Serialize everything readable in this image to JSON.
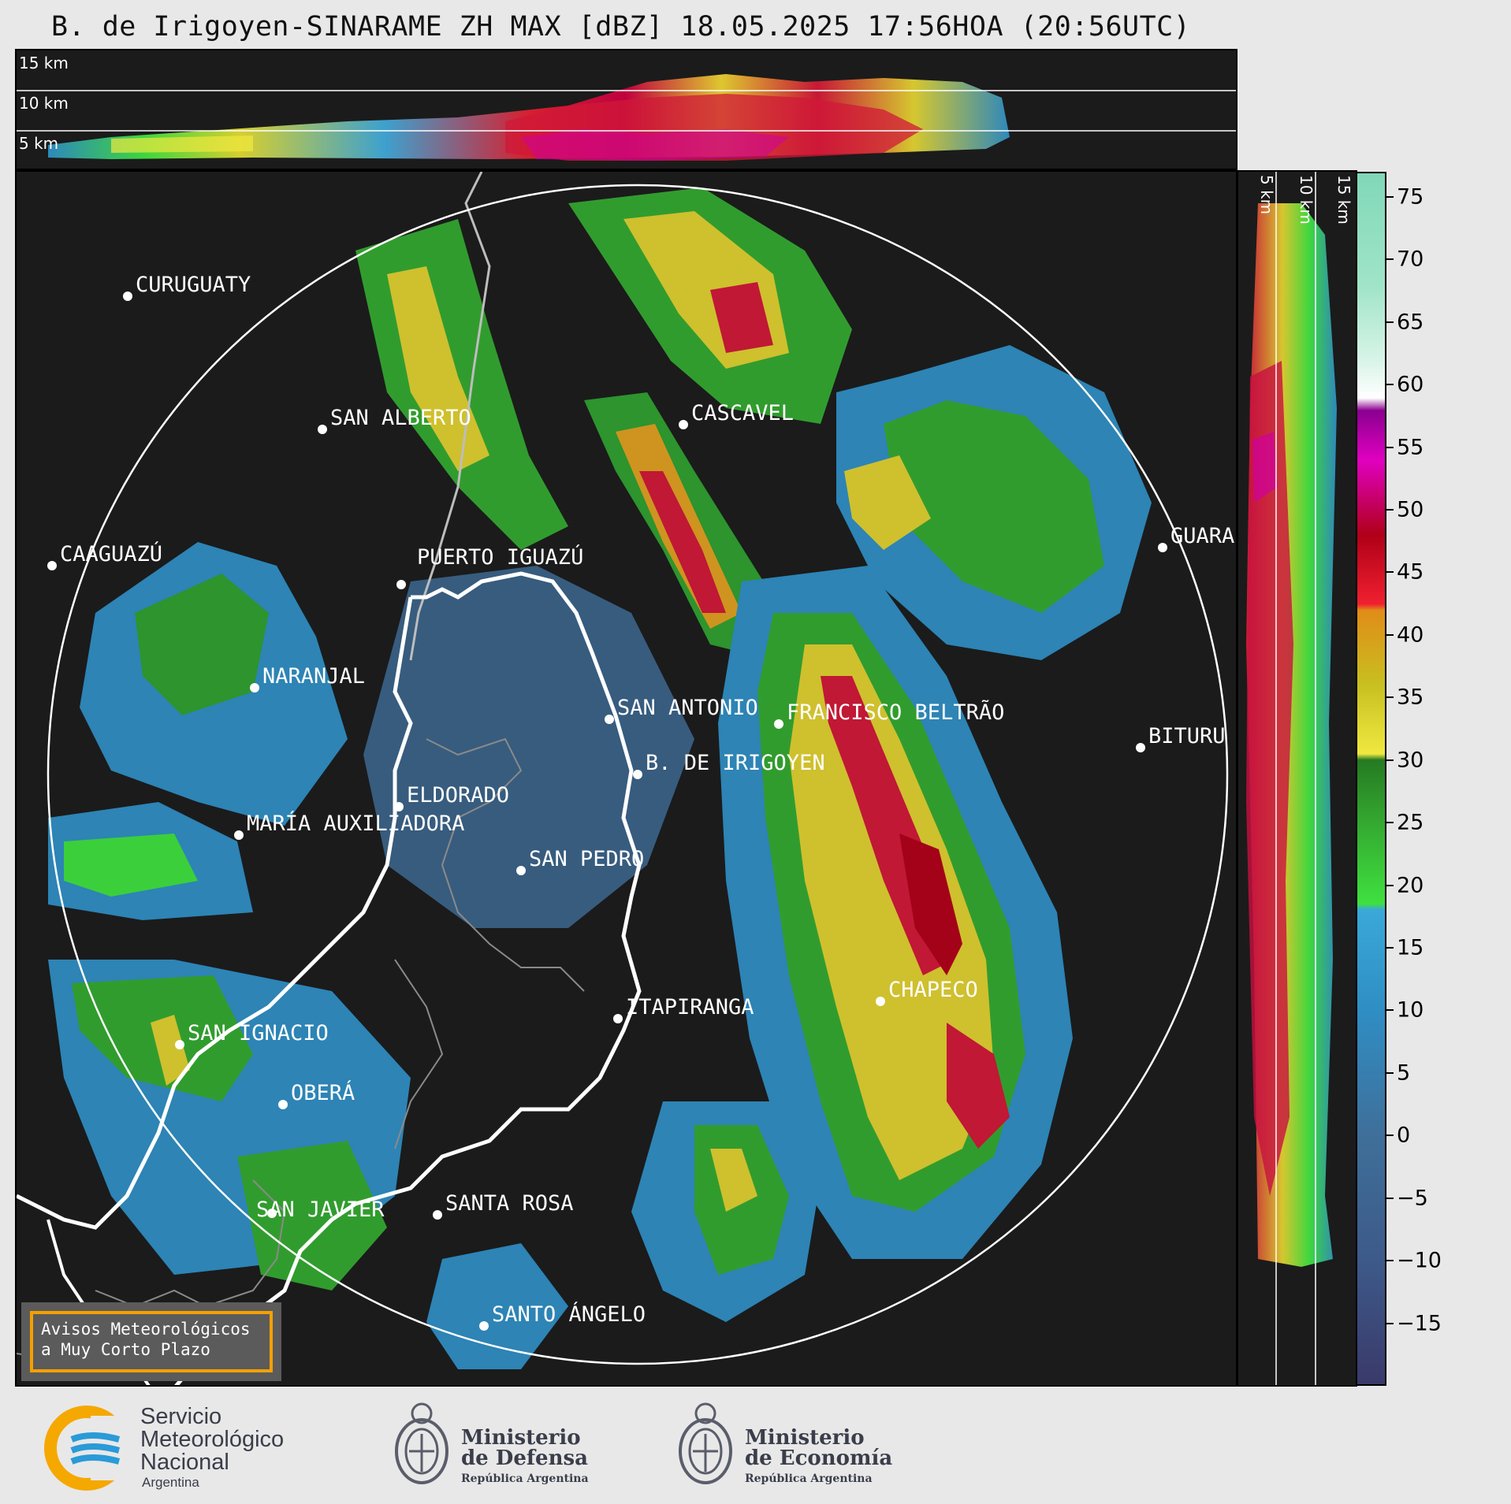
{
  "header": {
    "title": "B. de Irigoyen-SINARAME ZH MAX [dBZ] 18.05.2025 17:56HOA (20:56UTC)"
  },
  "top_panel": {
    "height_labels": [
      "15 km",
      "10 km",
      "5 km"
    ]
  },
  "right_panel": {
    "height_labels": [
      "5 km",
      "10 km",
      "15 km"
    ]
  },
  "map": {
    "cities": [
      {
        "name": "CURUGUATY"
      },
      {
        "name": "SAN ALBERTO"
      },
      {
        "name": "CASCAVEL"
      },
      {
        "name": "CAAGUAZÚ"
      },
      {
        "name": "GUARA"
      },
      {
        "name": "PUERTO IGUAZÚ"
      },
      {
        "name": "NARANJAL"
      },
      {
        "name": "SAN ANTONIO"
      },
      {
        "name": "FRANCISCO BELTRÃO"
      },
      {
        "name": "BITURU"
      },
      {
        "name": "B. DE IRIGOYEN"
      },
      {
        "name": "ELDORADO"
      },
      {
        "name": "MARÍA AUXILIADORA"
      },
      {
        "name": "SAN PEDRO"
      },
      {
        "name": "CHAPECO"
      },
      {
        "name": "ITAPIRANGA"
      },
      {
        "name": "SAN IGNACIO"
      },
      {
        "name": "OBERÁ"
      },
      {
        "name": "SAN JAVIER"
      },
      {
        "name": "SANTA ROSA"
      },
      {
        "name": "SANTO ÁNGELO"
      }
    ]
  },
  "colorbar": {
    "unit": "dBZ",
    "min": -20,
    "max": 77,
    "ticks": [
      75,
      70,
      65,
      60,
      55,
      50,
      45,
      40,
      35,
      30,
      25,
      20,
      15,
      10,
      5,
      0,
      -5,
      -10,
      -15
    ],
    "tick_labels": [
      "75",
      "70",
      "65",
      "60",
      "55",
      "50",
      "45",
      "40",
      "35",
      "30",
      "25",
      "20",
      "15",
      "10",
      "5",
      "0",
      "−5",
      "−10",
      "−15"
    ],
    "stops": [
      {
        "v": -20,
        "c": "#3a3a6a"
      },
      {
        "v": -10,
        "c": "#3d5a8a"
      },
      {
        "v": 0,
        "c": "#3f6f9a"
      },
      {
        "v": 10,
        "c": "#2f8ec4"
      },
      {
        "v": 18,
        "c": "#3aa8d8"
      },
      {
        "v": 18.5,
        "c": "#3fe040"
      },
      {
        "v": 25,
        "c": "#34a830"
      },
      {
        "v": 30,
        "c": "#257a22"
      },
      {
        "v": 30.5,
        "c": "#f0e840"
      },
      {
        "v": 36,
        "c": "#c8c020"
      },
      {
        "v": 42,
        "c": "#e08c18"
      },
      {
        "v": 42.5,
        "c": "#f02030"
      },
      {
        "v": 48,
        "c": "#b00018"
      },
      {
        "v": 50,
        "c": "#c00050"
      },
      {
        "v": 54,
        "c": "#e000c0"
      },
      {
        "v": 58,
        "c": "#8a0090"
      },
      {
        "v": 59,
        "c": "#ffffff"
      },
      {
        "v": 62,
        "c": "#d8f4e8"
      },
      {
        "v": 68,
        "c": "#a0e4c8"
      },
      {
        "v": 77,
        "c": "#80d8b8"
      }
    ]
  },
  "aviso": {
    "line1": "Avisos Meteorológicos",
    "line2": "a Muy Corto Plazo"
  },
  "footer": {
    "smn": {
      "line1": "Servicio",
      "line2": "Meteorológico",
      "line3": "Nacional",
      "line4": "Argentina"
    },
    "defensa": {
      "line1": "Ministerio",
      "line2": "de Defensa",
      "line3": "República Argentina"
    },
    "economia": {
      "line1": "Ministerio",
      "line2": "de Economía",
      "line3": "República Argentina"
    }
  },
  "colors": {
    "panel_bg": "#1b1b1b",
    "page_bg": "#e8e8e8",
    "aviso_border": "#f5a000",
    "smn_blue": "#2a9ad8",
    "smn_orange": "#f5a800"
  }
}
